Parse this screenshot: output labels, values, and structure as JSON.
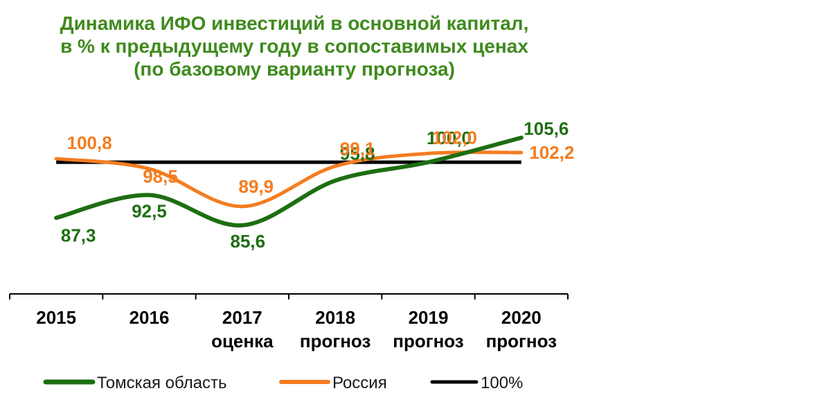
{
  "chart_data": {
    "type": "line",
    "title_lines": [
      "Динамика ИФО инвестиций в основной капитал,",
      "в % к предыдущему году в сопоставимых ценах",
      "(по базовому варианту прогноза)"
    ],
    "categories": [
      [
        "2015"
      ],
      [
        "2016"
      ],
      [
        "2017",
        "оценка"
      ],
      [
        "2018",
        "прогноз"
      ],
      [
        "2019",
        "прогноз"
      ],
      [
        "2020",
        "прогноз"
      ]
    ],
    "series": [
      {
        "name": "Томская область",
        "color": "#1e6e12",
        "values": [
          87.3,
          92.5,
          85.6,
          95.8,
          100.0,
          105.6
        ],
        "labels": [
          "87,3",
          "92,5",
          "85,6",
          "95,8",
          "100,0",
          "105,6"
        ]
      },
      {
        "name": "Россия",
        "color": "#f47c20",
        "values": [
          100.8,
          98.5,
          89.9,
          99.1,
          102.0,
          102.2
        ],
        "labels": [
          "100,8",
          "98,5",
          "89,9",
          "99,1",
          "102,0",
          "102,2"
        ]
      },
      {
        "name": "100%",
        "color": "#000000",
        "values": [
          100,
          100,
          100,
          100,
          100,
          100
        ],
        "labels": []
      }
    ],
    "grid": false,
    "legend_position": "bottom"
  }
}
